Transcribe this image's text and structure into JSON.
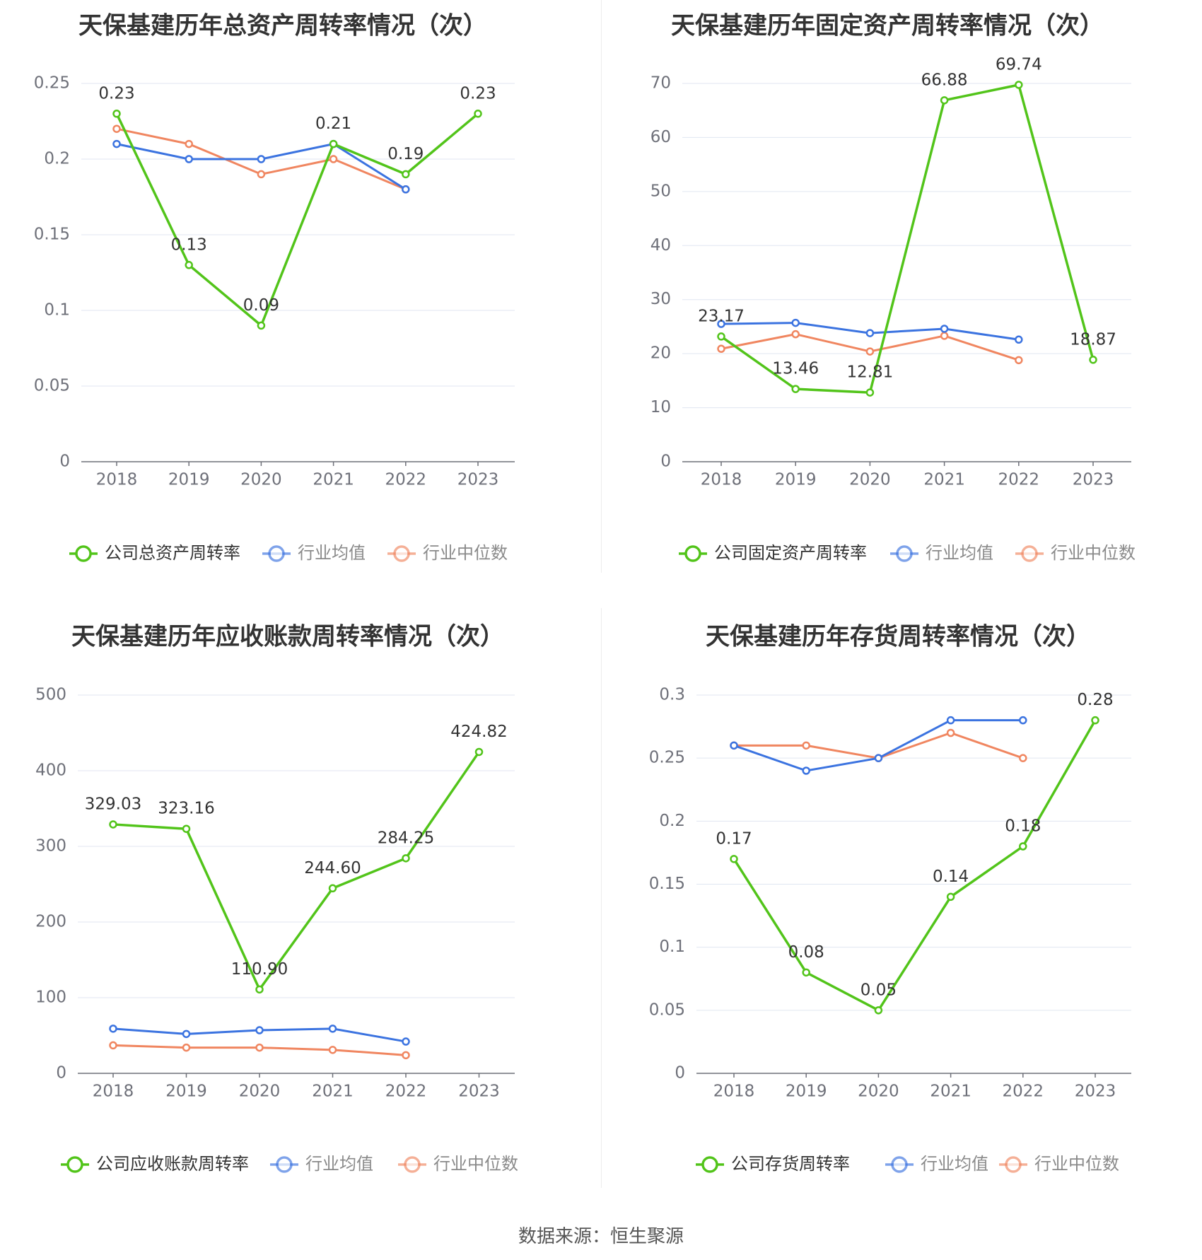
{
  "source_text": "数据来源：恒生聚源",
  "colors": {
    "company": "#52c41a",
    "avg": "#3b73e0",
    "median": "#f08660"
  },
  "chart_data": [
    {
      "type": "line",
      "title": "天保基建历年总资产周转率情况（次）",
      "x": [
        "2018",
        "2019",
        "2020",
        "2021",
        "2022",
        "2023"
      ],
      "ylim": [
        0,
        0.25
      ],
      "yticks": [
        0,
        0.05,
        0.1,
        0.15,
        0.2,
        0.25
      ],
      "ytick_labels": [
        "0",
        "0.05",
        "0.1",
        "0.15",
        "0.2",
        "0.25"
      ],
      "grid": true,
      "legend": "bottom",
      "series": [
        {
          "name": "公司总资产周转率",
          "values": [
            0.23,
            0.13,
            0.09,
            0.21,
            0.19,
            0.23
          ],
          "labels": [
            "0.23",
            "0.13",
            "0.09",
            "0.21",
            "0.19",
            "0.23"
          ]
        },
        {
          "name": "行业均值",
          "values": [
            0.21,
            0.2,
            0.2,
            0.21,
            0.18,
            null
          ]
        },
        {
          "name": "行业中位数",
          "values": [
            0.22,
            0.21,
            0.19,
            0.2,
            0.18,
            null
          ]
        }
      ]
    },
    {
      "type": "line",
      "title": "天保基建历年固定资产周转率情况（次）",
      "x": [
        "2018",
        "2019",
        "2020",
        "2021",
        "2022",
        "2023"
      ],
      "ylim": [
        0,
        70
      ],
      "yticks": [
        0,
        10,
        20,
        30,
        40,
        50,
        60,
        70
      ],
      "ytick_labels": [
        "0",
        "10",
        "20",
        "30",
        "40",
        "50",
        "60",
        "70"
      ],
      "grid": true,
      "legend": "bottom",
      "series": [
        {
          "name": "公司固定资产周转率",
          "values": [
            23.17,
            13.46,
            12.81,
            66.88,
            69.74,
            18.87
          ],
          "labels": [
            "23.17",
            "13.46",
            "12.81",
            "66.88",
            "69.74",
            "18.87"
          ]
        },
        {
          "name": "行业均值",
          "values": [
            25.5,
            25.7,
            23.8,
            24.6,
            22.6,
            null
          ]
        },
        {
          "name": "行业中位数",
          "values": [
            20.9,
            23.6,
            20.4,
            23.3,
            18.8,
            null
          ]
        }
      ]
    },
    {
      "type": "line",
      "title": "天保基建历年应收账款周转率情况（次）",
      "x": [
        "2018",
        "2019",
        "2020",
        "2021",
        "2022",
        "2023"
      ],
      "ylim": [
        0,
        500
      ],
      "yticks": [
        0,
        100,
        200,
        300,
        400,
        500
      ],
      "ytick_labels": [
        "0",
        "100",
        "200",
        "300",
        "400",
        "500"
      ],
      "grid": true,
      "legend": "bottom",
      "series": [
        {
          "name": "公司应收账款周转率",
          "values": [
            329.03,
            323.16,
            110.9,
            244.6,
            284.25,
            424.82
          ],
          "labels": [
            "329.03",
            "323.16",
            "110.90",
            "244.60",
            "284.25",
            "424.82"
          ]
        },
        {
          "name": "行业均值",
          "values": [
            59,
            52,
            57,
            59,
            42,
            null
          ]
        },
        {
          "name": "行业中位数",
          "values": [
            37,
            34,
            34,
            31,
            24,
            null
          ]
        }
      ]
    },
    {
      "type": "line",
      "title": "天保基建历年存货周转率情况（次）",
      "x": [
        "2018",
        "2019",
        "2020",
        "2021",
        "2022",
        "2023"
      ],
      "ylim": [
        0,
        0.3
      ],
      "yticks": [
        0,
        0.05,
        0.1,
        0.15,
        0.2,
        0.25,
        0.3
      ],
      "ytick_labels": [
        "0",
        "0.05",
        "0.1",
        "0.15",
        "0.2",
        "0.25",
        "0.3"
      ],
      "grid": true,
      "legend": "bottom",
      "series": [
        {
          "name": "公司存货周转率",
          "values": [
            0.17,
            0.08,
            0.05,
            0.14,
            0.18,
            0.28
          ],
          "labels": [
            "0.17",
            "0.08",
            "0.05",
            "0.14",
            "0.18",
            "0.28"
          ]
        },
        {
          "name": "行业均值",
          "values": [
            0.26,
            0.24,
            0.25,
            0.28,
            0.28,
            null
          ]
        },
        {
          "name": "行业中位数",
          "values": [
            0.26,
            0.26,
            0.25,
            0.27,
            0.25,
            null
          ]
        }
      ]
    }
  ]
}
